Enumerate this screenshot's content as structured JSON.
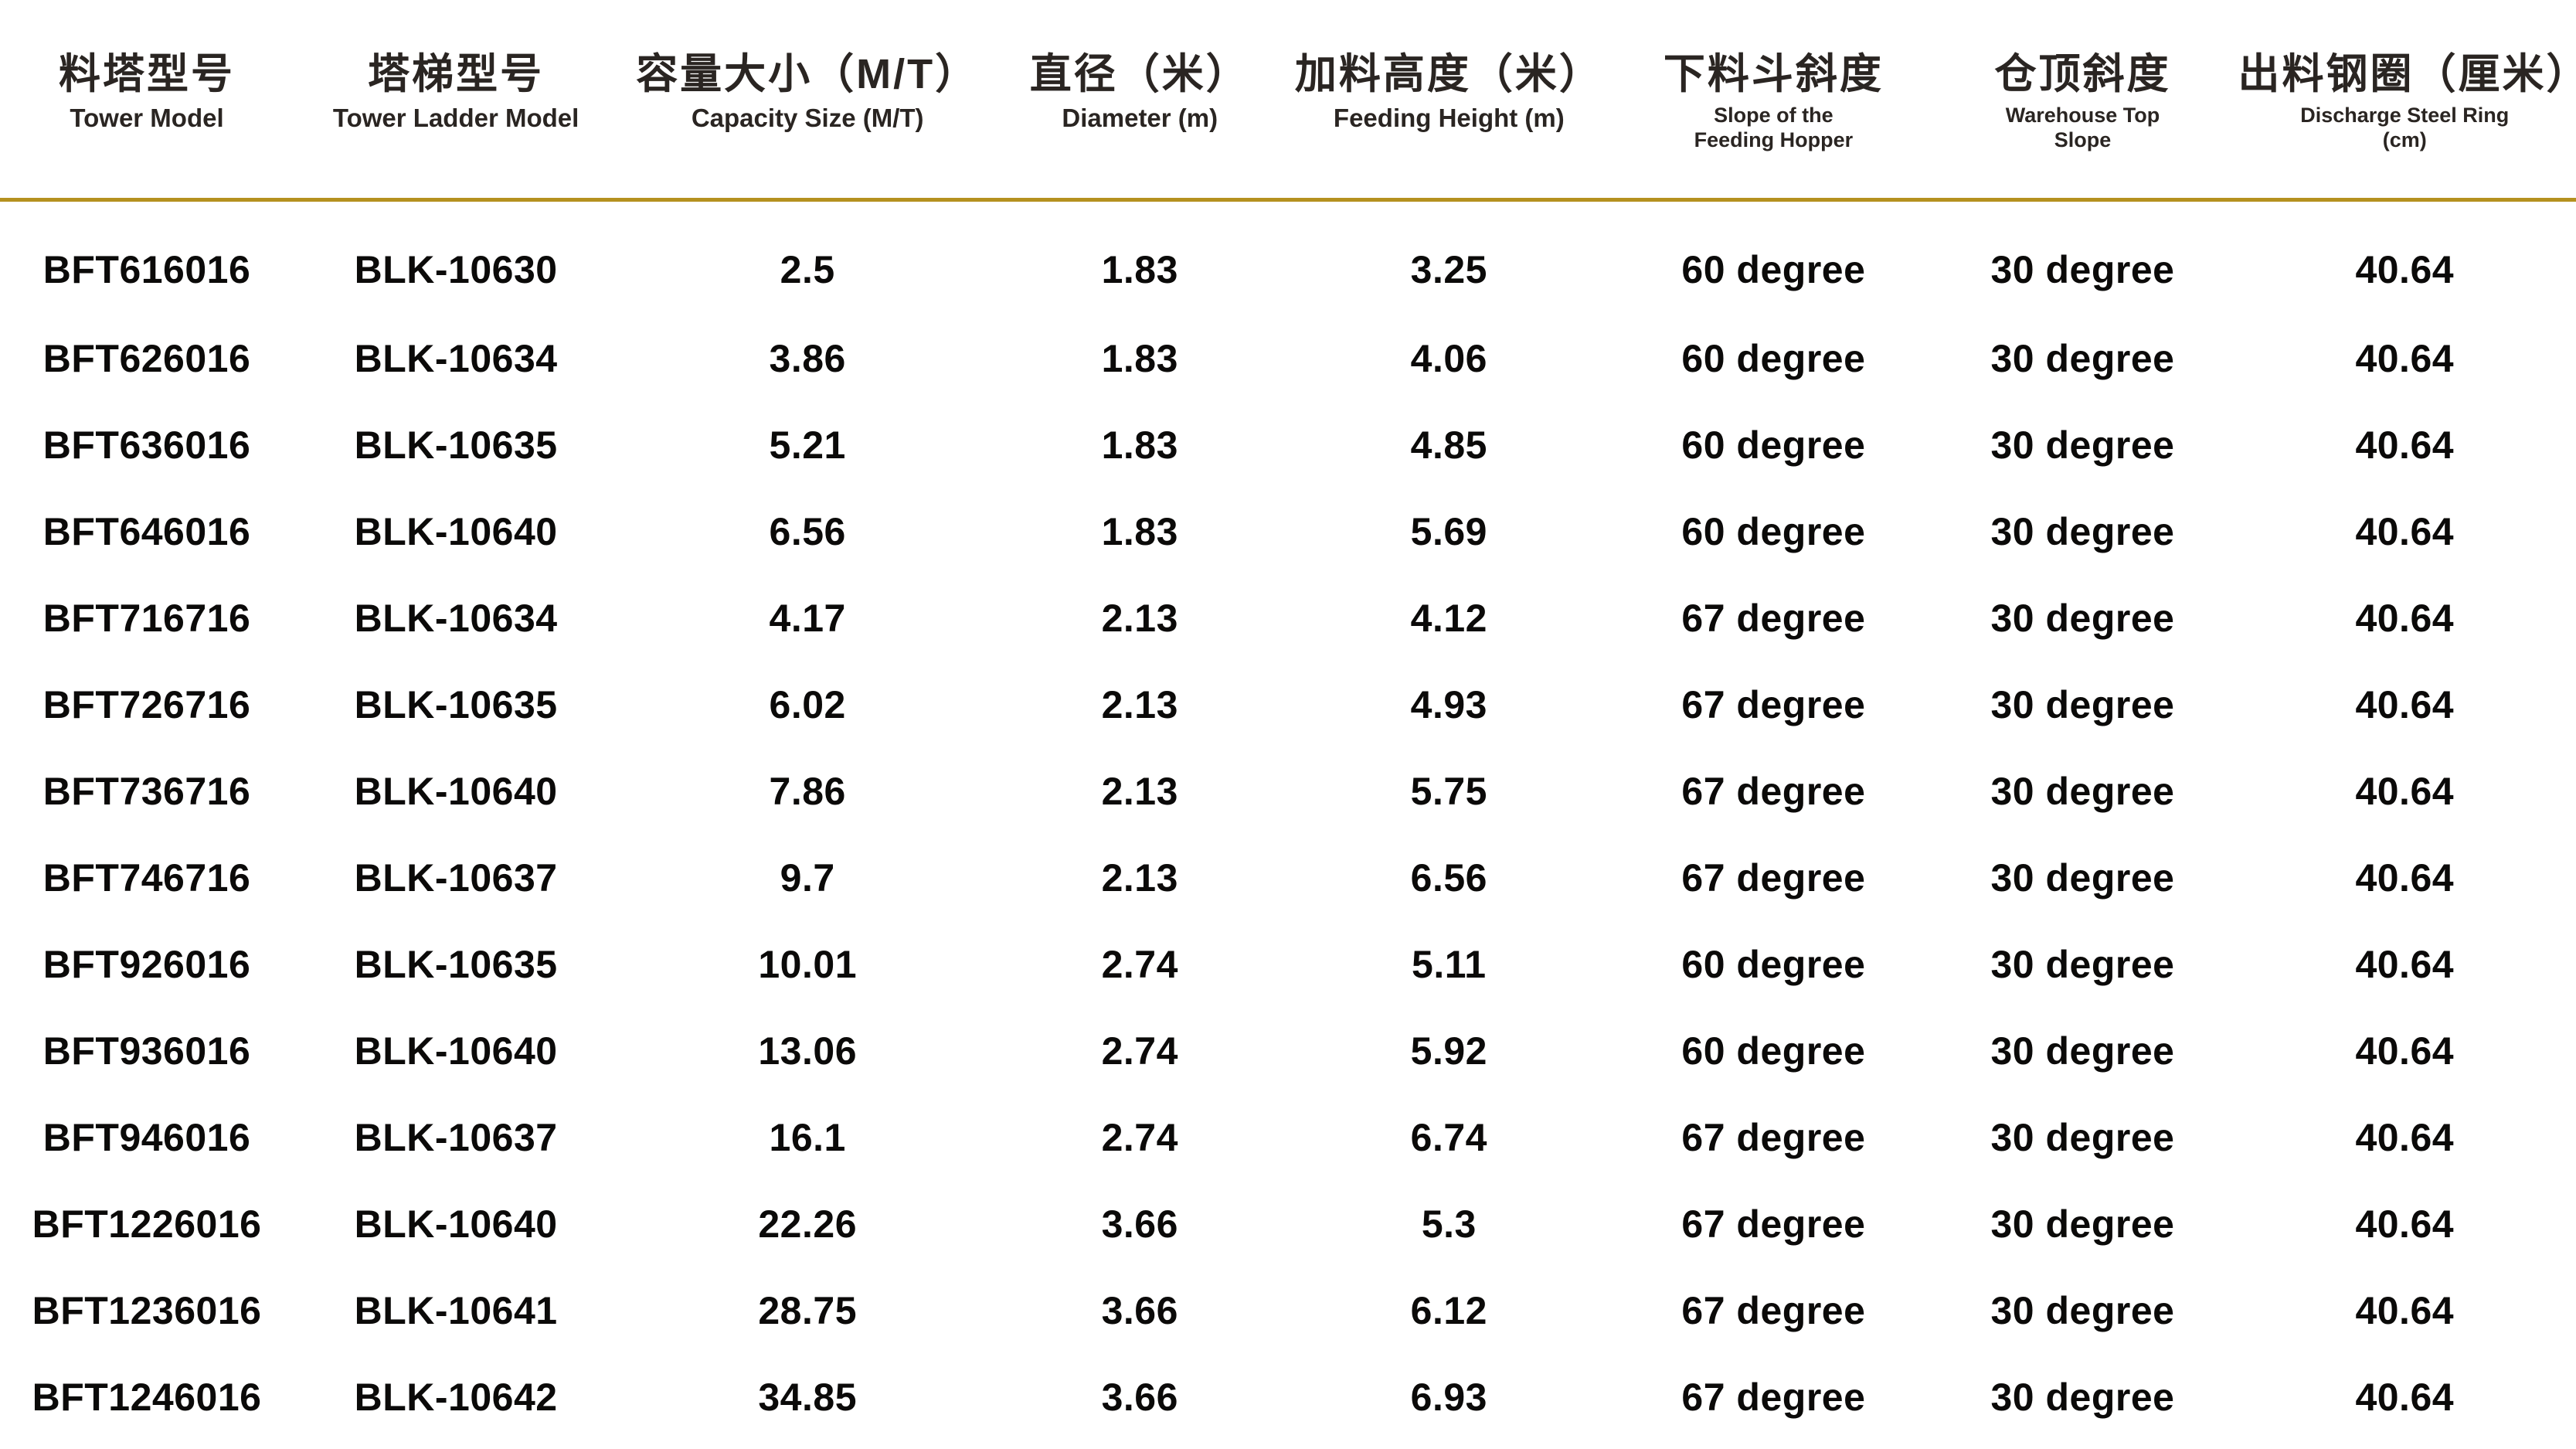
{
  "page": {
    "background": "#FFFFFF"
  },
  "colors": {
    "accent_line": "#B5911F",
    "header_text": "#2A2522",
    "body_text": "#0B0A09"
  },
  "table": {
    "columns": [
      {
        "key": "tower_model",
        "zh": "料塔型号",
        "en": "Tower Model"
      },
      {
        "key": "tower_ladder_model",
        "zh": "塔梯型号",
        "en": "Tower Ladder Model"
      },
      {
        "key": "capacity_size",
        "zh": "容量大小（M/T）",
        "en": "Capacity Size (M/T)"
      },
      {
        "key": "diameter",
        "zh": "直径（米）",
        "en": "Diameter (m)"
      },
      {
        "key": "feeding_height",
        "zh": "加料高度（米）",
        "en": "Feeding Height (m)"
      },
      {
        "key": "feeding_hopper_slope",
        "zh": "下料斗斜度",
        "en": "Slope of the Feeding Hopper"
      },
      {
        "key": "warehouse_top_slope",
        "zh": "仓顶斜度",
        "en": "Warehouse Top Slope"
      },
      {
        "key": "discharge_steel_ring",
        "zh": "出料钢圈（厘米）",
        "en": "Discharge Steel Ring (cm)"
      }
    ],
    "rows": [
      [
        "BFT616016",
        "BLK-10630",
        "2.5",
        "1.83",
        "3.25",
        "60 degree",
        "30 degree",
        "40.64"
      ],
      [
        "BFT626016",
        "BLK-10634",
        "3.86",
        "1.83",
        "4.06",
        "60 degree",
        "30 degree",
        "40.64"
      ],
      [
        "BFT636016",
        "BLK-10635",
        "5.21",
        "1.83",
        "4.85",
        "60 degree",
        "30 degree",
        "40.64"
      ],
      [
        "BFT646016",
        "BLK-10640",
        "6.56",
        "1.83",
        "5.69",
        "60 degree",
        "30 degree",
        "40.64"
      ],
      [
        "BFT716716",
        "BLK-10634",
        "4.17",
        "2.13",
        "4.12",
        "67 degree",
        "30 degree",
        "40.64"
      ],
      [
        "BFT726716",
        "BLK-10635",
        "6.02",
        "2.13",
        "4.93",
        "67 degree",
        "30 degree",
        "40.64"
      ],
      [
        "BFT736716",
        "BLK-10640",
        "7.86",
        "2.13",
        "5.75",
        "67 degree",
        "30 degree",
        "40.64"
      ],
      [
        "BFT746716",
        "BLK-10637",
        "9.7",
        "2.13",
        "6.56",
        "67 degree",
        "30 degree",
        "40.64"
      ],
      [
        "BFT926016",
        "BLK-10635",
        "10.01",
        "2.74",
        "5.11",
        "60 degree",
        "30 degree",
        "40.64"
      ],
      [
        "BFT936016",
        "BLK-10640",
        "13.06",
        "2.74",
        "5.92",
        "60 degree",
        "30 degree",
        "40.64"
      ],
      [
        "BFT946016",
        "BLK-10637",
        "16.1",
        "2.74",
        "6.74",
        "67 degree",
        "30 degree",
        "40.64"
      ],
      [
        "BFT1226016",
        "BLK-10640",
        "22.26",
        "3.66",
        "5.3",
        "67 degree",
        "30 degree",
        "40.64"
      ],
      [
        "BFT1236016",
        "BLK-10641",
        "28.75",
        "3.66",
        "6.12",
        "67 degree",
        "30 degree",
        "40.64"
      ],
      [
        "BFT1246016",
        "BLK-10642",
        "34.85",
        "3.66",
        "6.93",
        "67 degree",
        "30 degree",
        "40.64"
      ]
    ]
  }
}
